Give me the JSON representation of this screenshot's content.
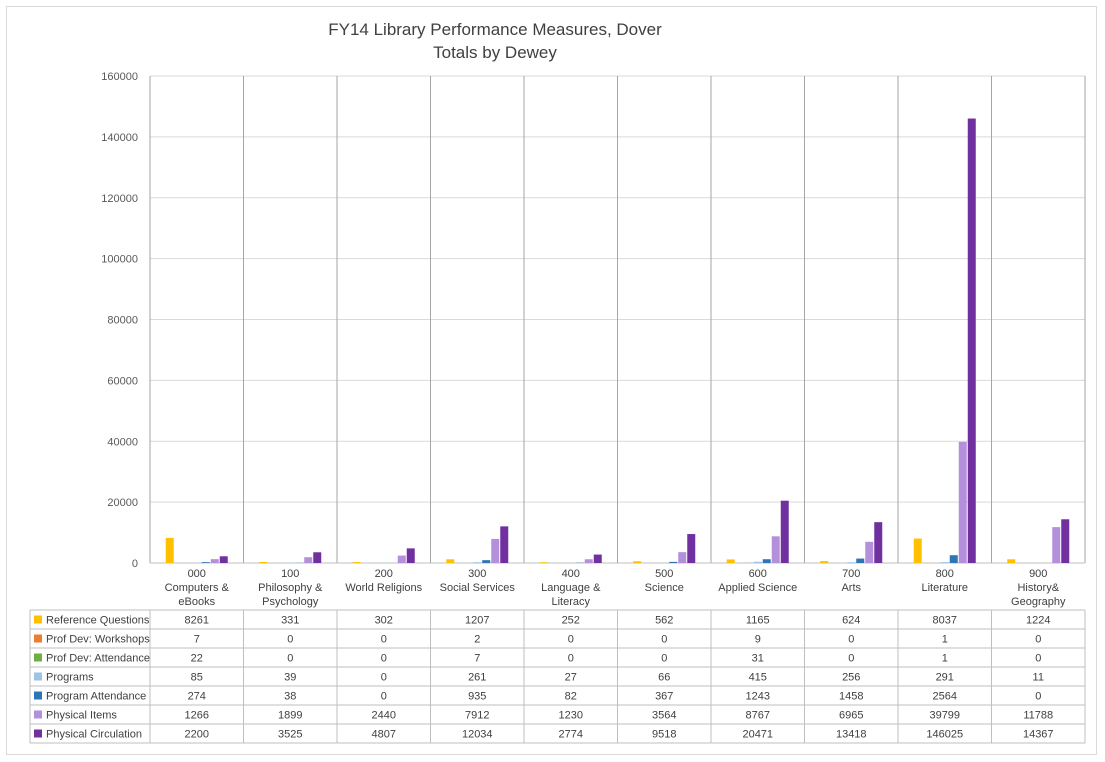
{
  "chart_data": {
    "type": "bar",
    "title": "FY14 Library Performance Measures, Dover",
    "subtitle": "Totals by Dewey",
    "ylim": [
      0,
      160000
    ],
    "yticks": [
      0,
      20000,
      40000,
      60000,
      80000,
      100000,
      120000,
      140000,
      160000
    ],
    "grid": true,
    "legend": "data-table",
    "categories": [
      [
        "000",
        "Computers &",
        "eBooks"
      ],
      [
        "100",
        "Philosophy &",
        "Psychology"
      ],
      [
        "200",
        "World Religions"
      ],
      [
        "300",
        "Social Services"
      ],
      [
        "400",
        "Language &",
        "Literacy"
      ],
      [
        "500",
        "Science"
      ],
      [
        "600",
        "Applied Science"
      ],
      [
        "700",
        "Arts"
      ],
      [
        "800",
        "Literature"
      ],
      [
        "900",
        "History&",
        "Geography"
      ]
    ],
    "series": [
      {
        "name": "Reference Questions",
        "color": "#ffc000",
        "values": [
          8261,
          331,
          302,
          1207,
          252,
          562,
          1165,
          624,
          8037,
          1224
        ]
      },
      {
        "name": "Prof Dev: Workshops",
        "color": "#ed7d31",
        "values": [
          7,
          0,
          0,
          2,
          0,
          0,
          9,
          0,
          1,
          0
        ]
      },
      {
        "name": "Prof Dev: Attendance",
        "color": "#70ad47",
        "values": [
          22,
          0,
          0,
          7,
          0,
          0,
          31,
          0,
          1,
          0
        ]
      },
      {
        "name": "Programs",
        "color": "#9dc3e6",
        "values": [
          85,
          39,
          0,
          261,
          27,
          66,
          415,
          256,
          291,
          11
        ]
      },
      {
        "name": "Program Attendance",
        "color": "#2e75b6",
        "values": [
          274,
          38,
          0,
          935,
          82,
          367,
          1243,
          1458,
          2564,
          0
        ]
      },
      {
        "name": "Physical Items",
        "color": "#b48fdb",
        "values": [
          1266,
          1899,
          2440,
          7912,
          1230,
          3564,
          8767,
          6965,
          39799,
          11788
        ]
      },
      {
        "name": "Physical Circulation",
        "color": "#7030a0",
        "values": [
          2200,
          3525,
          4807,
          12034,
          2774,
          9518,
          20471,
          13418,
          146025,
          14367
        ]
      }
    ]
  }
}
